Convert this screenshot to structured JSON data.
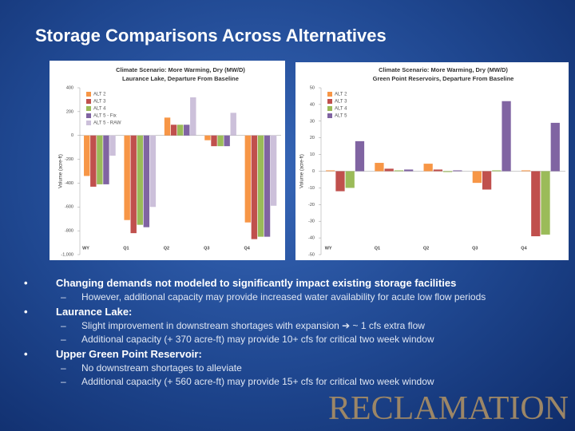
{
  "slide": {
    "title": "Storage Comparisons Across Alternatives",
    "bullets": [
      {
        "text": "Changing demands not modeled to significantly impact existing storage facilities",
        "subs": [
          "However, additional capacity may provide increased water availability for acute low flow periods"
        ]
      },
      {
        "text": "Laurance Lake:",
        "subs": [
          "Slight improvement in downstream shortages with expansion ➔ ~ 1 cfs extra flow",
          "Additional capacity (+ 370 acre-ft) may provide  10+ cfs for critical two week window"
        ]
      },
      {
        "text": "Upper Green Point Reservoir:",
        "subs": [
          "No downstream shortages to alleviate",
          "Additional capacity (+ 560 acre-ft) may provide  15+ cfs for critical two week window"
        ]
      }
    ]
  },
  "logo": "RECLAMATION",
  "chart_data": [
    {
      "type": "bar",
      "title": "Climate Scenario:  More Warming, Dry (MW/D)",
      "subtitle": "Laurance Lake, Departure From Baseline",
      "y_label": "Volume (acre-ft)",
      "categories": [
        "WY",
        "Q1",
        "Q2",
        "Q3",
        "Q4"
      ],
      "series": [
        {
          "name": "ALT 2",
          "color": "#f79646",
          "values": [
            -340,
            -710,
            150,
            -40,
            -730
          ]
        },
        {
          "name": "ALT 3",
          "color": "#c0504d",
          "values": [
            -430,
            -820,
            90,
            -90,
            -870
          ]
        },
        {
          "name": "ALT 4",
          "color": "#9bbb59",
          "values": [
            -410,
            -750,
            90,
            -90,
            -850
          ]
        },
        {
          "name": "ALT 5 - Fix",
          "color": "#8064a2",
          "values": [
            -410,
            -770,
            90,
            -90,
            -850
          ]
        },
        {
          "name": "ALT 5 - RAW",
          "color": "#ccc0da",
          "values": [
            -170,
            -600,
            320,
            190,
            -590
          ]
        }
      ],
      "ylim": [
        -1000,
        400
      ],
      "yticks": [
        400,
        200,
        0,
        -200,
        -400,
        -600,
        -800,
        {
          "value": -1000,
          "label": "-1,000"
        }
      ],
      "grid": false,
      "legend": "upper left"
    },
    {
      "type": "bar",
      "title": "Climate Scenario:  More Warming, Dry (MW/D)",
      "subtitle": "Green Point Reservoirs, Departure From Baseline",
      "y_label": "Volume (acre-ft)",
      "categories": [
        "WY",
        "Q1",
        "Q2",
        "Q3",
        "Q4"
      ],
      "series": [
        {
          "name": "ALT 2",
          "color": "#f79646",
          "values": [
            0.5,
            5,
            4.5,
            -7,
            0.5
          ]
        },
        {
          "name": "ALT 3",
          "color": "#c0504d",
          "values": [
            -12,
            1.5,
            1,
            -11,
            -39
          ]
        },
        {
          "name": "ALT 4",
          "color": "#9bbb59",
          "values": [
            -10,
            0.5,
            -0.5,
            0.5,
            -38
          ]
        },
        {
          "name": "ALT 5",
          "color": "#8064a2",
          "values": [
            18,
            1,
            0.5,
            42,
            29
          ]
        }
      ],
      "ylim": [
        -50,
        50
      ],
      "yticks": [
        50,
        40,
        30,
        20,
        10,
        0,
        -10,
        -20,
        -30,
        -40,
        -50
      ],
      "grid": false,
      "legend": "upper left"
    }
  ]
}
